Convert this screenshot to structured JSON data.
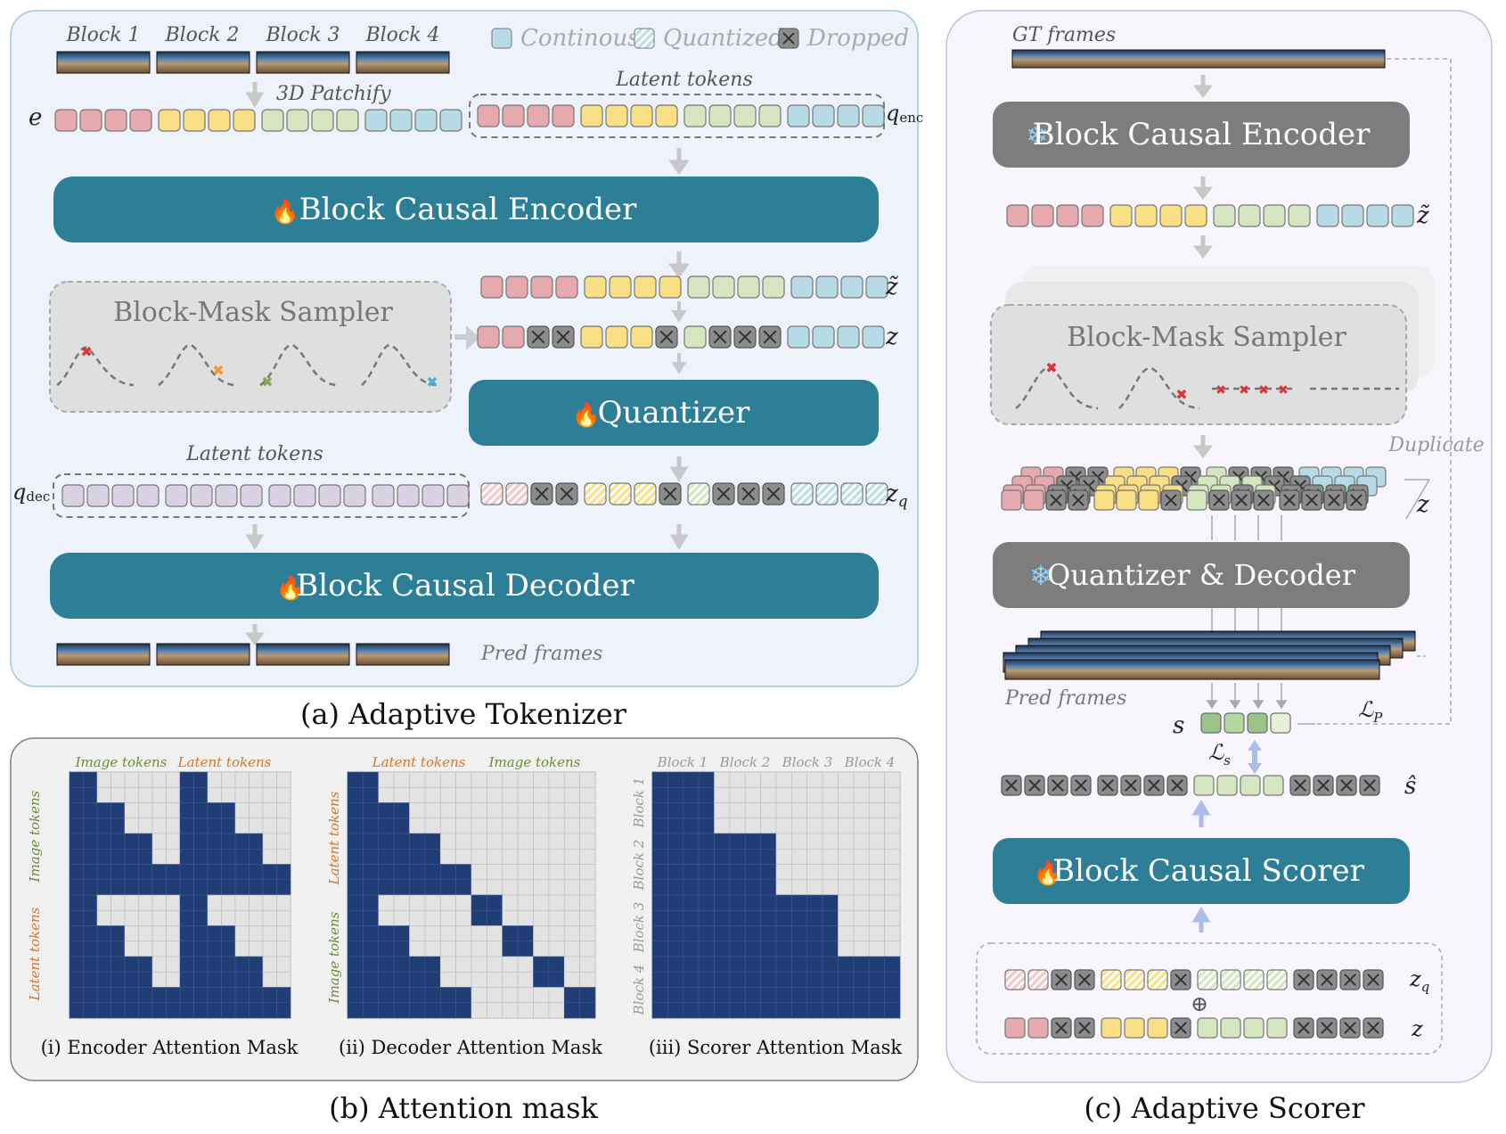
{
  "colors": {
    "panel_a_bg": "#eef3fb",
    "panel_a_border": "#9ccbe0",
    "panel_b_bg": "#f1f1f1",
    "panel_b_border": "#7f7f7f",
    "panel_c_bg": "#f8f6fc",
    "panel_c_border": "#c9b8e2",
    "teal": "#2d7f98",
    "gray_block": "#7d7d7d",
    "light_block": "#dcdcdc",
    "pink": "#e6a9ad",
    "yellow": "#f8de84",
    "green": "#d5e5bf",
    "blue": "#b7dbe6",
    "purple": "#d8d2e4",
    "dropped": "#8c8c8c",
    "mask_blue": "#203d75",
    "mask_grid": "#d6d6d6",
    "score_green": "#9cc48a"
  },
  "legend": {
    "continuous": "Continous",
    "quantized": "Quantized",
    "dropped": "Dropped"
  },
  "panel_a": {
    "caption": "(a) Adaptive Tokenizer",
    "block_labels": [
      "Block 1",
      "Block 2",
      "Block 3",
      "Block 4"
    ],
    "patchify_label": "3D Patchify",
    "e_label": "e",
    "latent_tokens_label": "Latent tokens",
    "q_enc_label": "q",
    "q_enc_sub": "enc",
    "encoder_label": "Block Causal Encoder",
    "sampler_label": "Block-Mask Sampler",
    "z_tilde_label": "z̃",
    "z_label": "z",
    "quantizer_label": "Quantizer",
    "latent_tokens_label_2": "Latent tokens",
    "q_dec_label": "q",
    "q_dec_sub": "dec",
    "z_q_label": "z",
    "z_q_sub": "q",
    "decoder_label": "Block Causal Decoder",
    "pred_frames_label": "Pred frames",
    "fire_icon": "fire-icon"
  },
  "panel_b": {
    "caption": "(b) Attention mask",
    "mask_captions": [
      "(i) Encoder Attention Mask",
      "(ii) Decoder Attention Mask",
      "(iii) Scorer Attention Mask"
    ],
    "enc_top": [
      "Image tokens",
      "Latent tokens"
    ],
    "enc_side": [
      "Image tokens",
      "Latent tokens"
    ],
    "dec_top": [
      "Latent tokens",
      "Image tokens"
    ],
    "dec_side": [
      "Latent tokens",
      "Image tokens"
    ],
    "scorer_top": [
      "Block 1",
      "Block 2",
      "Block 3",
      "Block 4"
    ],
    "scorer_side": [
      "Block 1",
      "Block 2",
      "Block 3",
      "Block 4"
    ],
    "label_colors": {
      "image": "#6e8a3a",
      "latent": "#d6752a",
      "block": "#9a9a9a"
    }
  },
  "panel_c": {
    "caption": "(c) Adaptive Scorer",
    "gt_frames_label": "GT frames",
    "encoder_label": "Block Causal Encoder",
    "z_tilde_label": "z̃",
    "sampler_label": "Block-Mask Sampler",
    "duplicate_label": "Duplicate",
    "z_label": "z",
    "quant_dec_label": "Quantizer & Decoder",
    "pred_frames_label": "Pred frames",
    "s_label": "s",
    "lp_label": "ℒ",
    "lp_sub": "P",
    "ls_label": "ℒ",
    "ls_sub": "s",
    "s_hat_label": "ŝ",
    "scorer_label": "Block Causal Scorer",
    "zq_label": "z",
    "zq_sub": "q",
    "oplus_label": "⊕",
    "z_bottom_label": "z",
    "snow_icon": "snowflake-icon"
  },
  "token_rows": {
    "full": "pppp yyyy gggg bbbb",
    "z": "ppxx yyyx gxxx bbbb",
    "zq": "PPxx YYYx GxxX BBBB",
    "scorer_z": "ppxx yyyx gggg xxxx",
    "scorer_zq": "PPxx YYYx GGGG xxxx",
    "s_hat": "xxxx xxxx gggg xxxx"
  }
}
